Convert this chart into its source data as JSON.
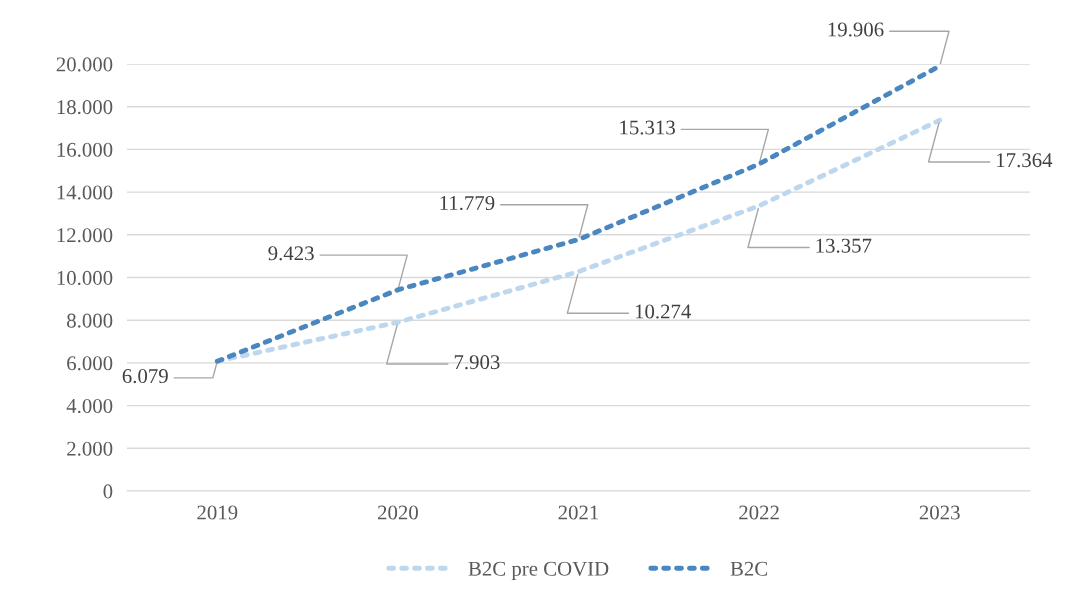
{
  "chart_data": {
    "type": "line",
    "categories": [
      "2019",
      "2020",
      "2021",
      "2022",
      "2023"
    ],
    "series": [
      {
        "name": "B2C pre COVID",
        "color": "#bdd7ee",
        "values": [
          6079,
          7903,
          10274,
          13357,
          17364
        ],
        "value_labels": [
          null,
          "7.903",
          "10.274",
          "13.357",
          "17.364"
        ]
      },
      {
        "name": "B2C",
        "color": "#4a86c0",
        "values": [
          6079,
          9423,
          11779,
          15313,
          19906
        ],
        "value_labels": [
          "6.079",
          "9.423",
          "11.779",
          "15.313",
          "19.906"
        ]
      }
    ],
    "ylim": [
      0,
      20000
    ],
    "yticks": [
      {
        "value": 0,
        "label": "0"
      },
      {
        "value": 2000,
        "label": "2.000"
      },
      {
        "value": 4000,
        "label": "4.000"
      },
      {
        "value": 6000,
        "label": "6.000"
      },
      {
        "value": 8000,
        "label": "8.000"
      },
      {
        "value": 10000,
        "label": "10.000"
      },
      {
        "value": 12000,
        "label": "12.000"
      },
      {
        "value": 14000,
        "label": "14.000"
      },
      {
        "value": 16000,
        "label": "16.000"
      },
      {
        "value": 18000,
        "label": "18.000"
      },
      {
        "value": 20000,
        "label": "20.000"
      }
    ],
    "grid": "y",
    "legend": "bottom",
    "marker": "none",
    "line_style": "dotted"
  }
}
